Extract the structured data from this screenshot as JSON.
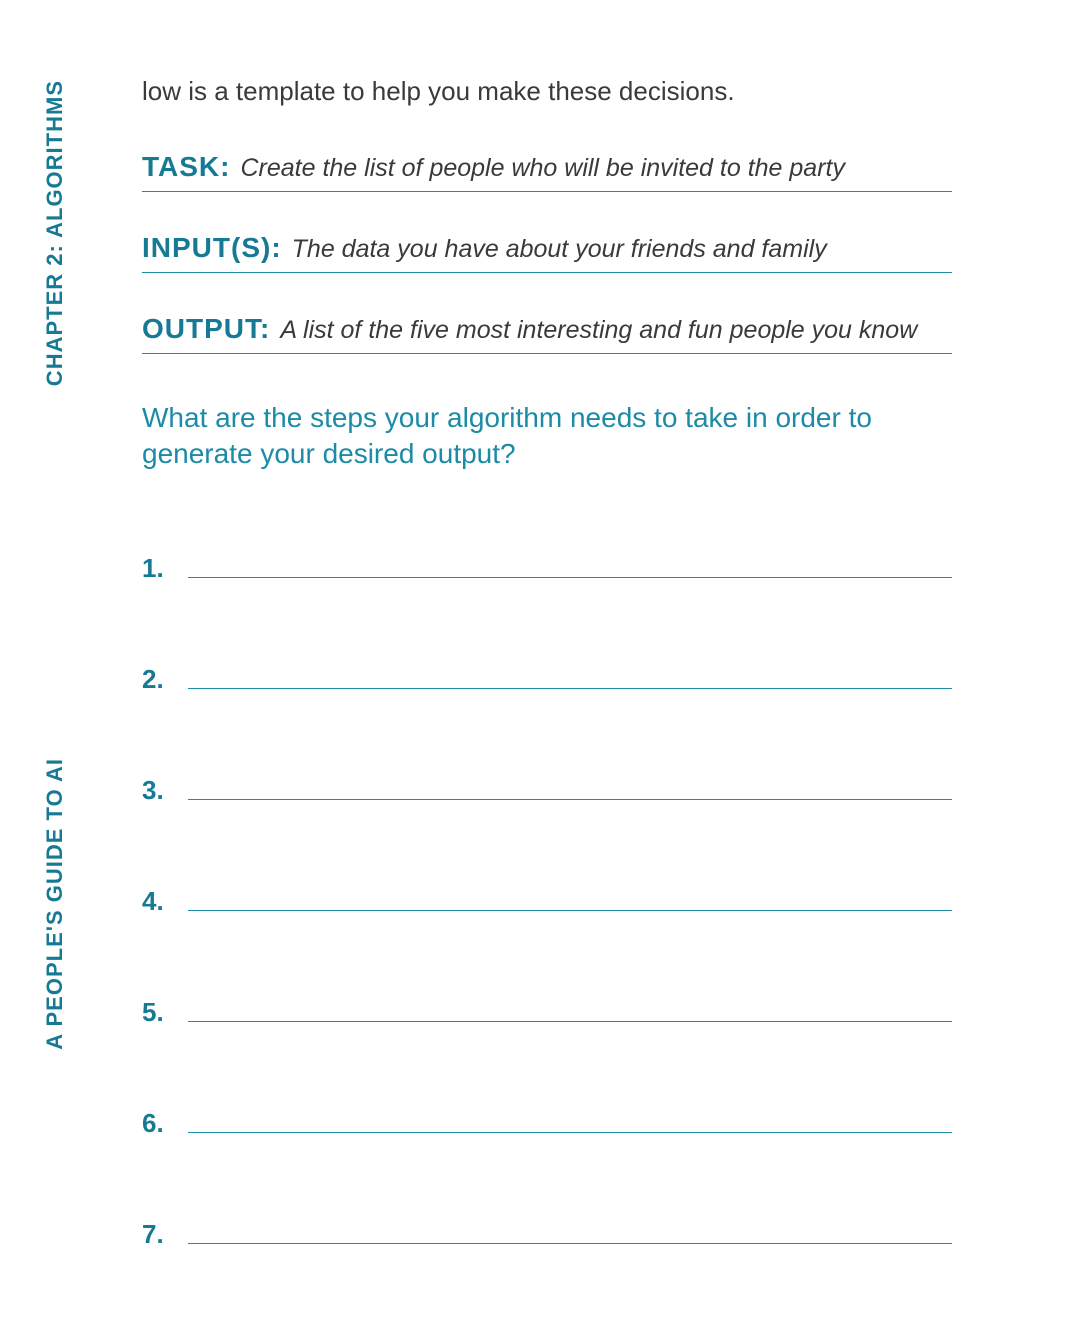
{
  "colors": {
    "accent": "#177a94",
    "rule": "#1b8ba6",
    "body": "#3a3a3a",
    "background": "#ffffff"
  },
  "sidebar": {
    "top_label": "CHAPTER 2: ALGORITHMS",
    "bottom_label": "A PEOPLE'S GUIDE TO AI"
  },
  "intro": "low is a template to help you make these decisions.",
  "definitions": [
    {
      "label": "TASK:",
      "value": "Create the list of people who will be invited to the party"
    },
    {
      "label": "INPUT(S):",
      "value": "The data you have about your friends and family"
    },
    {
      "label": "OUTPUT:",
      "value": "A list of the five most interesting and fun people you know"
    }
  ],
  "prompt": "What are the steps your algorithm needs to take in order to generate your desired output?",
  "steps": [
    {
      "num": "1."
    },
    {
      "num": "2."
    },
    {
      "num": "3."
    },
    {
      "num": "4."
    },
    {
      "num": "5."
    },
    {
      "num": "6."
    },
    {
      "num": "7."
    }
  ]
}
